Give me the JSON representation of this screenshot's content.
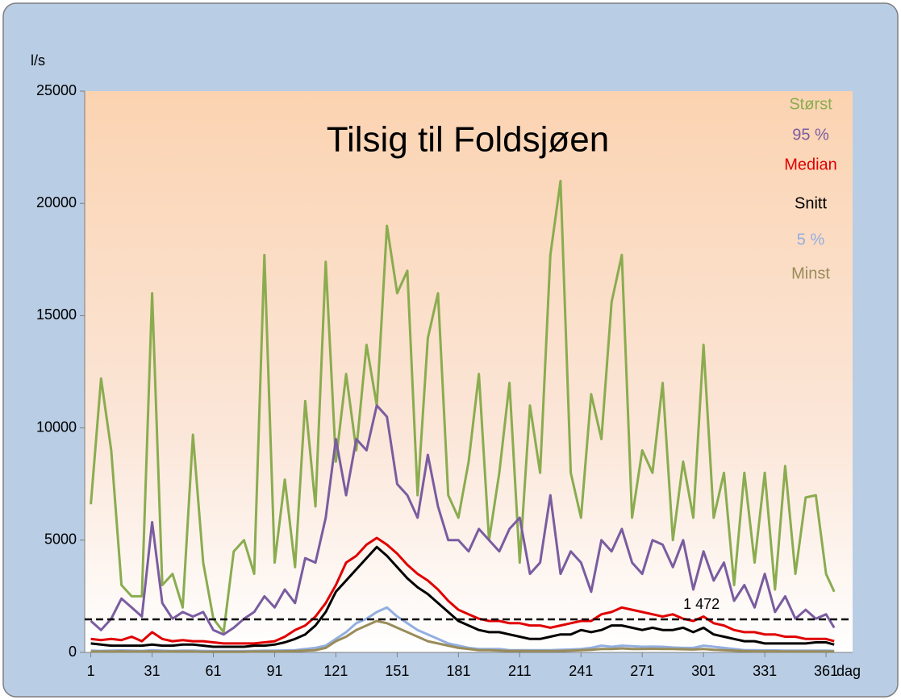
{
  "chart_data": {
    "type": "line",
    "title": "Tilsig til Foldsjøen",
    "y_label": "l/s",
    "x_label": "dag",
    "x": [
      1,
      6,
      11,
      16,
      21,
      26,
      31,
      36,
      41,
      46,
      51,
      56,
      61,
      66,
      71,
      76,
      81,
      86,
      91,
      96,
      101,
      106,
      111,
      116,
      121,
      126,
      131,
      136,
      141,
      146,
      151,
      156,
      161,
      166,
      171,
      176,
      181,
      186,
      191,
      196,
      201,
      206,
      211,
      216,
      221,
      226,
      231,
      236,
      241,
      246,
      251,
      256,
      261,
      266,
      271,
      276,
      281,
      286,
      291,
      296,
      301,
      306,
      311,
      316,
      321,
      326,
      331,
      336,
      341,
      346,
      351,
      356,
      361,
      365
    ],
    "xlim": [
      -2,
      374
    ],
    "xticks": [
      1,
      31,
      61,
      91,
      121,
      151,
      181,
      211,
      241,
      271,
      301,
      331,
      361
    ],
    "ylim": [
      0,
      25000
    ],
    "yticks": [
      0,
      5000,
      10000,
      15000,
      20000,
      25000
    ],
    "reference": {
      "value": 1472,
      "label": "1 472",
      "color": "#000000"
    },
    "series": [
      {
        "name": "Størst",
        "color": "#8aac4f",
        "values": [
          6600,
          12200,
          9000,
          3000,
          2500,
          2500,
          16000,
          3000,
          3500,
          2000,
          9700,
          4000,
          1500,
          900,
          4500,
          5000,
          3500,
          17700,
          4000,
          7700,
          3800,
          11200,
          6500,
          17400,
          8500,
          12400,
          9000,
          13700,
          11000,
          19000,
          16000,
          17000,
          7000,
          14000,
          16000,
          7000,
          6000,
          8500,
          12400,
          5000,
          8000,
          12000,
          4000,
          11000,
          8000,
          17700,
          21000,
          8000,
          6000,
          11500,
          9500,
          15600,
          17700,
          6000,
          9000,
          8000,
          12000,
          5000,
          8500,
          6000,
          13700,
          6000,
          8000,
          3000,
          8000,
          4000,
          8000,
          2800,
          8300,
          3500,
          6900,
          7000,
          3500,
          2700
        ]
      },
      {
        "name": "95 %",
        "color": "#7a5ca0",
        "values": [
          1400,
          1000,
          1500,
          2400,
          2000,
          1600,
          5800,
          2200,
          1500,
          1800,
          1600,
          1800,
          1000,
          800,
          1100,
          1500,
          1800,
          2500,
          2000,
          2800,
          2200,
          4200,
          4000,
          6000,
          9500,
          7000,
          9500,
          9000,
          11000,
          10500,
          7500,
          7000,
          6000,
          8800,
          6500,
          5000,
          5000,
          4500,
          5500,
          5000,
          4500,
          5500,
          6000,
          3500,
          4000,
          7000,
          3500,
          4500,
          4000,
          2700,
          5000,
          4500,
          5500,
          4000,
          3500,
          5000,
          4800,
          3800,
          5000,
          2800,
          4500,
          3200,
          4000,
          2300,
          3000,
          2000,
          3500,
          1800,
          2500,
          1500,
          1900,
          1500,
          1700,
          1100
        ]
      },
      {
        "name": "Median",
        "color": "#e00000",
        "values": [
          600,
          550,
          600,
          550,
          700,
          500,
          900,
          600,
          500,
          550,
          500,
          500,
          450,
          400,
          400,
          400,
          400,
          450,
          500,
          700,
          1000,
          1200,
          1600,
          2200,
          3000,
          4000,
          4300,
          4800,
          5100,
          4800,
          4400,
          3900,
          3500,
          3200,
          2800,
          2300,
          1900,
          1700,
          1500,
          1400,
          1400,
          1300,
          1300,
          1200,
          1200,
          1100,
          1200,
          1300,
          1400,
          1400,
          1700,
          1800,
          2000,
          1900,
          1800,
          1700,
          1600,
          1700,
          1500,
          1400,
          1600,
          1300,
          1200,
          1000,
          900,
          900,
          800,
          800,
          700,
          700,
          600,
          600,
          600,
          500
        ]
      },
      {
        "name": "Snitt",
        "color": "#000000",
        "values": [
          400,
          350,
          300,
          300,
          300,
          300,
          350,
          300,
          300,
          350,
          350,
          300,
          250,
          250,
          250,
          250,
          300,
          300,
          350,
          450,
          600,
          800,
          1200,
          1800,
          2700,
          3200,
          3700,
          4200,
          4700,
          4300,
          3800,
          3300,
          2900,
          2600,
          2200,
          1800,
          1400,
          1200,
          1000,
          900,
          900,
          800,
          700,
          600,
          600,
          700,
          800,
          800,
          1000,
          900,
          1000,
          1200,
          1200,
          1100,
          1000,
          1100,
          1000,
          1000,
          1100,
          900,
          1100,
          800,
          700,
          600,
          500,
          500,
          400,
          400,
          400,
          400,
          400,
          450,
          450,
          350
        ]
      },
      {
        "name": "5 %",
        "color": "#93aee0",
        "values": [
          80,
          70,
          80,
          90,
          80,
          70,
          100,
          80,
          70,
          80,
          80,
          70,
          60,
          60,
          60,
          60,
          70,
          80,
          80,
          90,
          100,
          150,
          200,
          300,
          600,
          900,
          1300,
          1500,
          1800,
          2000,
          1600,
          1300,
          1000,
          800,
          600,
          400,
          300,
          200,
          150,
          150,
          150,
          100,
          100,
          100,
          100,
          100,
          120,
          130,
          150,
          200,
          300,
          250,
          300,
          280,
          250,
          260,
          250,
          220,
          200,
          200,
          300,
          250,
          200,
          150,
          100,
          100,
          90,
          90,
          80,
          80,
          80,
          80,
          80,
          70
        ]
      },
      {
        "name": "Minst",
        "color": "#998c5a",
        "values": [
          40,
          40,
          40,
          50,
          40,
          40,
          50,
          40,
          40,
          40,
          40,
          30,
          30,
          30,
          30,
          30,
          40,
          40,
          40,
          50,
          60,
          80,
          100,
          200,
          500,
          700,
          1000,
          1200,
          1400,
          1300,
          1100,
          900,
          700,
          500,
          400,
          300,
          200,
          150,
          100,
          100,
          80,
          70,
          70,
          60,
          60,
          60,
          70,
          80,
          100,
          120,
          150,
          150,
          180,
          150,
          150,
          160,
          150,
          150,
          140,
          130,
          150,
          120,
          100,
          80,
          60,
          50,
          50,
          50,
          40,
          40,
          40,
          40,
          40,
          40
        ]
      }
    ]
  }
}
